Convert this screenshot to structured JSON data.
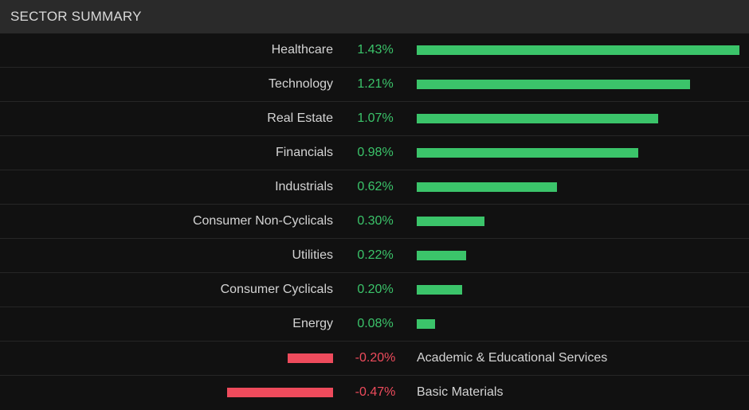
{
  "header": {
    "title": "SECTOR SUMMARY"
  },
  "colors": {
    "positive": "#3bc46a",
    "negative": "#ee4b5c",
    "background": "#111111",
    "header_bg": "#2a2a2a"
  },
  "chart_data": {
    "type": "bar",
    "orientation": "horizontal",
    "title": "SECTOR SUMMARY",
    "categories": [
      "Healthcare",
      "Technology",
      "Real Estate",
      "Financials",
      "Industrials",
      "Consumer Non-Cyclicals",
      "Utilities",
      "Consumer Cyclicals",
      "Energy",
      "Academic & Educational Services",
      "Basic Materials"
    ],
    "values": [
      1.43,
      1.21,
      1.07,
      0.98,
      0.62,
      0.3,
      0.22,
      0.2,
      0.08,
      -0.2,
      -0.47
    ],
    "labels": [
      "1.43%",
      "1.21%",
      "1.07%",
      "0.98%",
      "0.62%",
      "0.30%",
      "0.22%",
      "0.20%",
      "0.08%",
      "-0.20%",
      "-0.47%"
    ],
    "unit": "%",
    "grid": false,
    "legend": "none"
  }
}
